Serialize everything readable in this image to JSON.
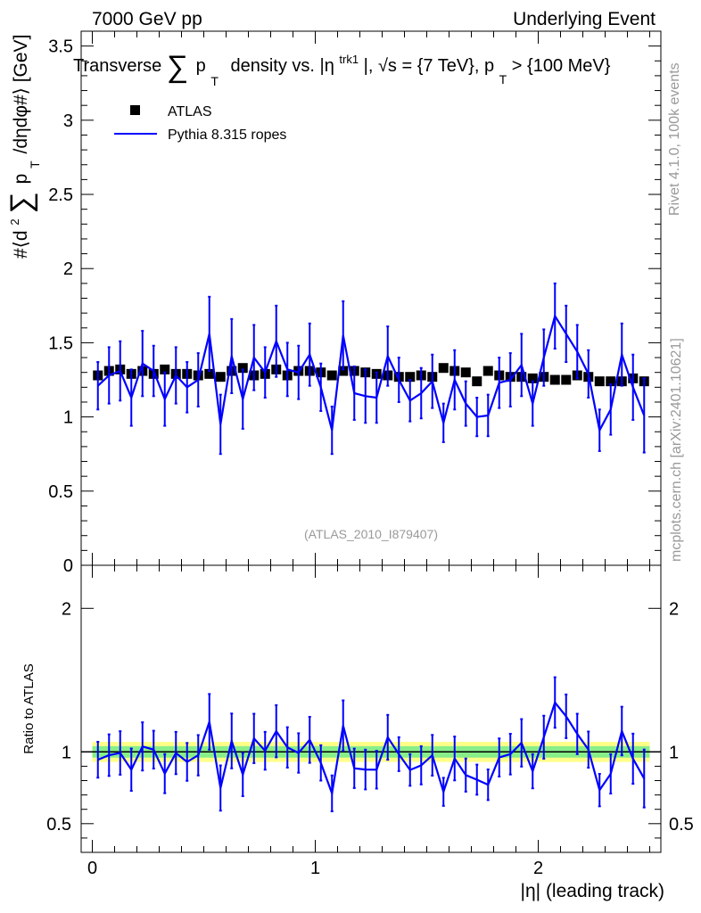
{
  "header": {
    "left": "7000 GeV pp",
    "right": "Underlying Event"
  },
  "side_labels": {
    "rivet": "Rivet 4.1.0,  100k events",
    "mcplots": "mcplots.cern.ch [arXiv:2401.10621]"
  },
  "chart_data": {
    "type": "scatter",
    "title": "Transverse ∑ pT density vs. |η^trk1|, √s = {7 TeV}, pT > {100 MeV}",
    "title_parts": {
      "a": "Transverse",
      "sum": "∑",
      "p": "p",
      "p_sub": "T",
      "b": "density vs. |η",
      "eta_sup": "trk1",
      "c": "|, √s = {7 TeV}, p",
      "c_sub": "T",
      "d": " > {100 MeV}"
    },
    "analysis_label": "(ATLAS_2010_I879407)",
    "xlabel": "|η| (leading track)",
    "ylabel_parts": {
      "a": "#⟨d",
      "a_sup": "2",
      "sum": "∑",
      "p": "p",
      "p_sub": "T",
      "b": "/dηdφ#⟩ [GeV]"
    },
    "ratio_ylabel": "Ratio to ATLAS",
    "xlim": [
      -0.05,
      2.55
    ],
    "ylim": [
      0,
      3.6
    ],
    "ratio_ylim": [
      0.3,
      2.3
    ],
    "x_ticks": [
      0,
      1,
      2
    ],
    "x_tick_labels": [
      "0",
      "1",
      "2"
    ],
    "y_ticks": [
      0,
      0.5,
      1,
      1.5,
      2,
      2.5,
      3,
      3.5
    ],
    "y_tick_labels": [
      "0",
      "0.5",
      "1",
      "1.5",
      "2",
      "2.5",
      "3",
      "3.5"
    ],
    "ratio_ticks": [
      0.5,
      1,
      2
    ],
    "ratio_tick_labels": [
      "0.5",
      "1",
      "2"
    ],
    "legend": [
      {
        "name": "ATLAS",
        "marker": "square",
        "color": "#000000"
      },
      {
        "name": "Pythia 8.315 ropes",
        "marker": "line",
        "color": "#0000ff"
      }
    ],
    "legend_position": "top-left",
    "x": [
      0.025,
      0.075,
      0.125,
      0.175,
      0.225,
      0.275,
      0.325,
      0.375,
      0.425,
      0.475,
      0.525,
      0.575,
      0.625,
      0.675,
      0.725,
      0.775,
      0.825,
      0.875,
      0.925,
      0.975,
      1.025,
      1.075,
      1.125,
      1.175,
      1.225,
      1.275,
      1.325,
      1.375,
      1.425,
      1.475,
      1.525,
      1.575,
      1.625,
      1.675,
      1.725,
      1.775,
      1.825,
      1.875,
      1.925,
      1.975,
      2.025,
      2.075,
      2.125,
      2.175,
      2.225,
      2.275,
      2.325,
      2.375,
      2.425,
      2.475
    ],
    "series": [
      {
        "name": "ATLAS",
        "values": [
          1.28,
          1.31,
          1.32,
          1.29,
          1.31,
          1.29,
          1.32,
          1.29,
          1.29,
          1.28,
          1.29,
          1.27,
          1.31,
          1.33,
          1.28,
          1.29,
          1.32,
          1.28,
          1.31,
          1.31,
          1.3,
          1.28,
          1.31,
          1.31,
          1.3,
          1.29,
          1.28,
          1.27,
          1.27,
          1.28,
          1.27,
          1.33,
          1.31,
          1.3,
          1.24,
          1.31,
          1.28,
          1.27,
          1.27,
          1.26,
          1.27,
          1.25,
          1.25,
          1.28,
          1.27,
          1.24,
          1.24,
          1.24,
          1.26,
          1.24
        ]
      },
      {
        "name": "Pythia 8.315 ropes",
        "values": [
          1.21,
          1.28,
          1.31,
          1.13,
          1.36,
          1.31,
          1.12,
          1.28,
          1.2,
          1.25,
          1.56,
          0.95,
          1.41,
          1.12,
          1.4,
          1.3,
          1.51,
          1.32,
          1.3,
          1.42,
          1.2,
          0.91,
          1.55,
          1.16,
          1.14,
          1.13,
          1.41,
          1.25,
          1.11,
          1.16,
          1.24,
          0.96,
          1.25,
          1.09,
          1.0,
          1.01,
          1.23,
          1.25,
          1.35,
          1.09,
          1.4,
          1.68,
          1.56,
          1.44,
          1.29,
          0.91,
          1.05,
          1.42,
          1.2,
          1.01
        ],
        "errors": [
          0.16,
          0.19,
          0.2,
          0.19,
          0.22,
          0.17,
          0.18,
          0.19,
          0.17,
          0.18,
          0.25,
          0.2,
          0.25,
          0.2,
          0.22,
          0.17,
          0.24,
          0.18,
          0.18,
          0.21,
          0.16,
          0.16,
          0.23,
          0.18,
          0.18,
          0.17,
          0.2,
          0.15,
          0.14,
          0.17,
          0.18,
          0.13,
          0.2,
          0.15,
          0.13,
          0.14,
          0.17,
          0.18,
          0.21,
          0.15,
          0.19,
          0.22,
          0.19,
          0.18,
          0.16,
          0.14,
          0.17,
          0.21,
          0.22,
          0.25
        ]
      }
    ],
    "ratio_bands": {
      "yellow": [
        0.93,
        1.07
      ],
      "green": [
        0.96,
        1.04
      ]
    }
  }
}
